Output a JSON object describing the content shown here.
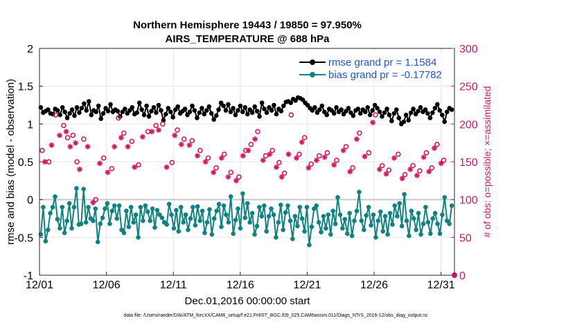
{
  "chart_data": {
    "type": "line",
    "title": "Northern Hemisphere 19443 / 19850 = 97.950%",
    "subtitle": "AIRS_TEMPERATURE @ 688 hPa",
    "xlabel": "Dec.01,2016 00:00:00 start",
    "ylabel": "rmse and bias (model - observation)",
    "ylabel_right": "# of obs: o=possible; ×=assimilated",
    "footer": "data file: /Users/raeder/DAI/ATM_forcXX/CAM6_setup/f.e21.FHIST_BGC.f09_025.CAM6assim.011/Diags_NTrS_2016-12/obs_diag_output.nc",
    "x_tick_labels": [
      "12/01",
      "12/06",
      "12/11",
      "12/16",
      "12/21",
      "12/26",
      "12/31"
    ],
    "x_tick_days": [
      1,
      6,
      11,
      16,
      21,
      26,
      31
    ],
    "xlim": [
      1,
      32
    ],
    "ylim": [
      -1,
      2
    ],
    "y_ticks": [
      "-1",
      "-0.5",
      "0",
      "0.5",
      "1",
      "1.5",
      "2"
    ],
    "y_tick_values": [
      -1,
      -0.5,
      0,
      0.5,
      1,
      1.5,
      2
    ],
    "y2lim": [
      0,
      300
    ],
    "y2_ticks": [
      "0",
      "50",
      "100",
      "150",
      "200",
      "250",
      "300"
    ],
    "y2_tick_values": [
      0,
      50,
      100,
      150,
      200,
      250,
      300
    ],
    "grid": true,
    "legend_position": "top-right",
    "colors": {
      "rmse": "#000000",
      "bias": "#0f8282",
      "obs": "#d6155f",
      "zero_line": "#c8c8c8"
    },
    "series": [
      {
        "name": "rmse grand pr = 1.1584",
        "key": "rmse",
        "values": [
          1.22,
          1.15,
          1.17,
          1.19,
          1.14,
          1.13,
          1.2,
          1.18,
          1.12,
          1.22,
          1.16,
          1.08,
          1.14,
          1.19,
          1.11,
          1.22,
          1.15,
          1.21,
          1.27,
          1.18,
          1.3,
          1.12,
          1.18,
          1.16,
          1.24,
          1.07,
          1.14,
          1.21,
          1.17,
          1.26,
          1.16,
          1.19,
          1.17,
          1.1,
          1.16,
          1.2,
          1.14,
          1.18,
          1.22,
          1.13,
          1.15,
          1.28,
          1.19,
          1.12,
          1.24,
          1.1,
          1.17,
          1.22,
          1.15,
          1.25,
          1.18,
          1.05,
          1.13,
          1.21,
          1.16,
          1.09,
          1.19,
          1.23,
          1.14,
          1.17,
          1.2,
          1.12,
          1.16,
          1.24,
          1.18,
          1.08,
          1.15,
          1.21,
          1.13,
          1.18,
          1.23,
          1.14,
          1.06,
          1.11,
          1.19,
          1.28,
          1.24,
          1.18,
          1.26,
          1.16,
          1.21,
          1.12,
          1.18,
          1.24,
          1.16,
          1.22,
          1.13,
          1.19,
          1.15,
          1.23,
          1.17,
          1.1,
          1.28,
          1.2,
          1.15,
          1.22,
          1.18,
          1.25,
          1.13,
          1.2,
          1.17,
          1.24,
          1.29,
          1.3,
          1.28,
          1.33,
          1.31,
          1.35,
          1.34,
          1.32,
          1.28,
          1.25,
          1.21,
          1.18,
          1.22,
          1.15,
          1.19,
          1.24,
          1.16,
          1.12,
          1.2,
          1.18,
          1.14,
          1.22,
          1.16,
          1.19,
          1.13,
          1.17,
          1.21,
          1.15,
          1.11,
          1.18,
          1.2,
          1.14,
          1.19,
          1.16,
          1.22,
          1.12,
          1.18,
          1.25,
          1.21,
          1.16,
          1.1,
          1.15,
          1.2,
          1.12,
          1.04,
          1.14,
          1.19,
          1.08,
          1.0,
          1.03,
          1.12,
          1.05,
          1.15,
          1.2,
          1.13,
          1.17,
          1.22,
          1.16,
          1.19,
          1.14,
          1.08,
          1.15,
          1.21,
          1.26,
          1.18,
          1.12,
          1.03,
          1.16,
          1.21,
          1.19
        ],
        "marker": "filled-circle"
      },
      {
        "name": "bias grand pr = -0.17782",
        "key": "bias",
        "values": [
          -0.46,
          -0.1,
          -0.55,
          -0.4,
          -0.18,
          -0.1,
          0.04,
          -0.26,
          -0.38,
          -0.1,
          -0.44,
          -0.28,
          -0.05,
          -0.38,
          -0.1,
          0.15,
          -0.33,
          -0.32,
          0.14,
          -0.3,
          -0.1,
          -0.25,
          -0.28,
          -0.12,
          -0.56,
          -0.32,
          -0.24,
          -0.12,
          -0.05,
          -0.32,
          -0.15,
          -0.08,
          -0.25,
          -0.08,
          -0.4,
          -0.44,
          -0.15,
          -0.36,
          -0.1,
          -0.3,
          -0.2,
          -0.5,
          -0.1,
          -0.28,
          -0.08,
          -0.16,
          -0.28,
          -0.12,
          -0.37,
          -0.14,
          -0.2,
          -0.24,
          -0.3,
          -0.33,
          -0.06,
          -0.2,
          -0.38,
          -0.14,
          -0.42,
          -0.1,
          -0.3,
          -0.2,
          -0.4,
          -0.25,
          -0.1,
          -0.34,
          -0.09,
          -0.28,
          -0.15,
          -0.44,
          -0.3,
          -0.13,
          -0.46,
          -0.25,
          -0.15,
          -0.06,
          -0.36,
          -0.08,
          -0.2,
          -0.3,
          0.04,
          -0.45,
          -0.27,
          -0.12,
          -0.38,
          0.08,
          -0.24,
          -0.05,
          -0.3,
          -0.18,
          -0.46,
          -0.35,
          -0.1,
          -0.22,
          -0.08,
          -0.42,
          -0.22,
          -0.12,
          -0.2,
          -0.5,
          -0.3,
          -0.07,
          -0.4,
          -0.17,
          -0.08,
          -0.28,
          -0.52,
          -0.22,
          -0.35,
          -0.1,
          -0.25,
          -0.42,
          -0.1,
          -0.6,
          -0.36,
          -0.12,
          -0.08,
          -0.3,
          -0.43,
          -0.22,
          -0.38,
          -0.2,
          -0.46,
          -0.15,
          -0.32,
          0.03,
          -0.2,
          -0.38,
          -0.26,
          -0.45,
          -0.18,
          -0.48,
          -0.28,
          -0.15,
          0.1,
          -0.28,
          -0.4,
          -0.21,
          -0.1,
          -0.34,
          -0.2,
          -0.5,
          -0.28,
          -0.16,
          -0.42,
          -0.22,
          -0.46,
          -0.18,
          -0.33,
          -0.08,
          -0.22,
          -0.05,
          -0.35,
          0.07,
          -0.28,
          -0.48,
          -0.15,
          -0.25,
          -0.4,
          -0.18,
          -0.46,
          -0.32,
          -0.1,
          -0.3,
          -0.45,
          -0.25,
          -0.18,
          -0.32,
          -0.45,
          -0.2,
          0.03,
          -0.28,
          -0.32,
          -0.08
        ],
        "marker": "filled-circle"
      }
    ],
    "obs_possible": {
      "name": "possible (o)",
      "marker": "open-circle",
      "days": [
        1.2,
        1.7,
        2.2,
        2.8,
        3.1,
        3.5,
        3.8,
        4.3,
        5.2,
        5.8,
        6.4,
        6.9,
        7.3,
        7.9,
        8.4,
        9.1,
        9.7,
        10.2,
        10.9,
        11.3,
        11.8,
        12.4,
        13.0,
        13.6,
        14.2,
        14.8,
        15.3,
        15.9,
        16.4,
        16.8,
        17.3,
        17.9,
        18.4,
        18.9,
        19.3,
        19.8,
        20.4,
        20.8,
        21.3,
        21.9,
        22.5,
        23.2,
        23.9,
        24.4,
        24.9,
        25.6,
        26.1,
        26.6,
        27.1,
        27.8,
        28.3,
        28.9,
        29.4,
        29.9,
        30.3,
        30.7,
        31.2
      ],
      "counts": [
        165,
        150,
        212,
        198,
        182,
        185,
        150,
        180,
        100,
        155,
        141,
        208,
        188,
        177,
        146,
        190,
        198,
        200,
        149,
        192,
        180,
        178,
        165,
        155,
        142,
        160,
        136,
        130,
        165,
        173,
        190,
        158,
        165,
        149,
        135,
        212,
        160,
        182,
        147,
        158,
        162,
        152,
        170,
        142,
        188,
        162,
        212,
        145,
        139,
        160,
        133,
        145,
        138,
        162,
        142,
        173,
        152
      ]
    },
    "obs_assimilated": {
      "name": "assimilated (×)",
      "marker": "asterisk",
      "days": [
        1.4,
        1.9,
        2.5,
        3.0,
        3.3,
        3.7,
        4.0,
        4.6,
        5.0,
        5.5,
        6.1,
        6.6,
        7.1,
        7.6,
        8.1,
        8.7,
        9.4,
        9.9,
        10.5,
        11.1,
        11.6,
        12.2,
        12.8,
        13.4,
        14.0,
        14.6,
        15.1,
        15.7,
        16.2,
        16.6,
        17.1,
        17.7,
        18.2,
        18.7,
        19.1,
        19.6,
        20.2,
        20.6,
        21.1,
        21.7,
        22.3,
        23.0,
        23.7,
        24.2,
        24.7,
        25.3,
        25.9,
        26.4,
        26.9,
        27.5,
        28.1,
        28.7,
        29.2,
        29.7,
        30.1,
        30.5,
        31.0
      ],
      "counts": [
        150,
        172,
        185,
        190,
        170,
        175,
        140,
        170,
        96,
        148,
        136,
        170,
        182,
        170,
        143,
        183,
        190,
        192,
        143,
        185,
        173,
        172,
        158,
        150,
        136,
        155,
        130,
        125,
        158,
        165,
        180,
        152,
        160,
        143,
        130,
        160,
        155,
        176,
        142,
        152,
        156,
        146,
        165,
        137,
        180,
        157,
        202,
        140,
        134,
        155,
        128,
        140,
        132,
        156,
        137,
        168,
        148
      ]
    }
  }
}
